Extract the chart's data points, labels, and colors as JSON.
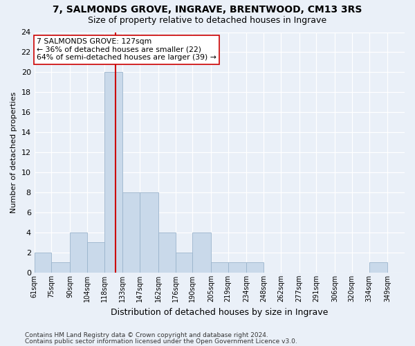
{
  "title1": "7, SALMONDS GROVE, INGRAVE, BRENTWOOD, CM13 3RS",
  "title2": "Size of property relative to detached houses in Ingrave",
  "xlabel": "Distribution of detached houses by size in Ingrave",
  "ylabel": "Number of detached properties",
  "bin_labels": [
    "61sqm",
    "75sqm",
    "90sqm",
    "104sqm",
    "118sqm",
    "133sqm",
    "147sqm",
    "162sqm",
    "176sqm",
    "190sqm",
    "205sqm",
    "219sqm",
    "234sqm",
    "248sqm",
    "262sqm",
    "277sqm",
    "291sqm",
    "306sqm",
    "320sqm",
    "334sqm",
    "349sqm"
  ],
  "bin_edges": [
    61,
    75,
    90,
    104,
    118,
    133,
    147,
    162,
    176,
    190,
    205,
    219,
    234,
    248,
    262,
    277,
    291,
    306,
    320,
    334,
    349,
    363
  ],
  "bar_values": [
    2,
    1,
    4,
    3,
    20,
    8,
    8,
    4,
    2,
    4,
    1,
    1,
    1,
    0,
    0,
    0,
    0,
    0,
    0,
    1,
    0
  ],
  "bar_color": "#c9d9ea",
  "bar_edge_color": "#9ab4cc",
  "property_value": 127,
  "marker_color": "#cc0000",
  "annotation_line1": "7 SALMONDS GROVE: 127sqm",
  "annotation_line2": "← 36% of detached houses are smaller (22)",
  "annotation_line3": "64% of semi-detached houses are larger (39) →",
  "annotation_box_color": "#ffffff",
  "annotation_box_edge": "#cc0000",
  "ylim": [
    0,
    24
  ],
  "yticks": [
    0,
    2,
    4,
    6,
    8,
    10,
    12,
    14,
    16,
    18,
    20,
    22,
    24
  ],
  "footnote1": "Contains HM Land Registry data © Crown copyright and database right 2024.",
  "footnote2": "Contains public sector information licensed under the Open Government Licence v3.0.",
  "bg_color": "#eaf0f8",
  "grid_color": "#ffffff",
  "title1_fontsize": 10,
  "title2_fontsize": 9,
  "ylabel_fontsize": 8,
  "xlabel_fontsize": 9,
  "tick_fontsize": 8,
  "xtick_fontsize": 7,
  "footnote_fontsize": 6.5
}
